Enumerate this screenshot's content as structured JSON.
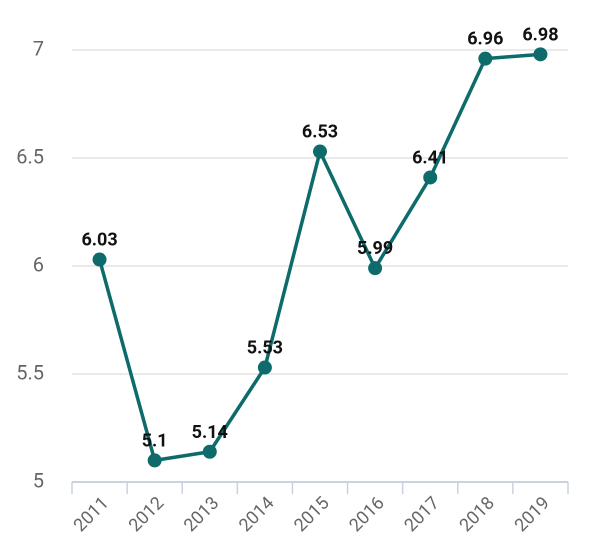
{
  "chart_data": {
    "type": "line",
    "categories": [
      "2011",
      "2012",
      "2013",
      "2014",
      "2015",
      "2016",
      "2017",
      "2018",
      "2019"
    ],
    "values": [
      6.03,
      5.1,
      5.14,
      5.53,
      6.53,
      5.99,
      6.41,
      6.96,
      6.98
    ],
    "color": "#0d6b6b",
    "ylim": [
      5,
      7
    ],
    "yticks": [
      5,
      5.5,
      6,
      6.5,
      7
    ],
    "grid": true
  }
}
